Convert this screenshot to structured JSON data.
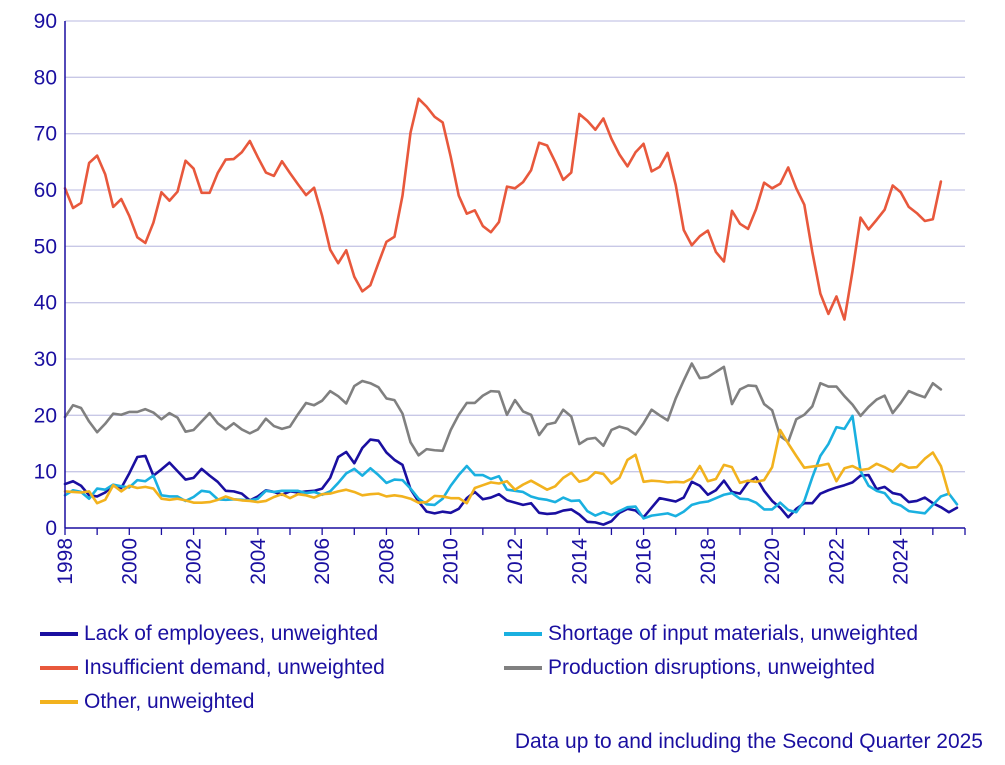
{
  "chart_data": {
    "type": "line",
    "title": "",
    "xlabel": "",
    "ylabel": "",
    "ylim": [
      0,
      90
    ],
    "xlim": [
      1998,
      2026
    ],
    "yticks": [
      0,
      10,
      20,
      30,
      40,
      50,
      60,
      70,
      80,
      90
    ],
    "xticks": [
      "1998",
      "2000",
      "2002",
      "2004",
      "2006",
      "2008",
      "2010",
      "2012",
      "2014",
      "2016",
      "2018",
      "2020",
      "2022",
      "2024"
    ],
    "grid": "horizontal",
    "legend_position": "bottom",
    "x_start": 1998,
    "x_step": 0.25,
    "note": "Data up to and including the Second Quarter 2025",
    "series": [
      {
        "name": "Lack of employees, unweighted",
        "color": "#1a0fa0",
        "values": [
          7.8,
          8.3,
          7.5,
          5.8,
          5.6,
          6.3,
          7.6,
          7.1,
          9.7,
          12.6,
          12.8,
          9.3,
          10.4,
          11.6,
          10.1,
          8.6,
          8.9,
          10.5,
          9.3,
          8.2,
          6.6,
          6.5,
          6.1,
          4.9,
          5.6,
          6.7,
          6.4,
          5.9,
          6.5,
          6.3,
          6.5,
          6.6,
          7.0,
          8.9,
          12.6,
          13.5,
          11.5,
          14.2,
          15.7,
          15.5,
          13.4,
          12.1,
          11.2,
          6.9,
          4.7,
          2.9,
          2.6,
          2.9,
          2.7,
          3.4,
          5.3,
          6.4,
          5.1,
          5.4,
          6.0,
          4.9,
          4.5,
          4.1,
          4.4,
          2.7,
          2.5,
          2.6,
          3.1,
          3.3,
          2.4,
          1.1,
          1.0,
          0.6,
          1.2,
          2.7,
          3.4,
          3.1,
          1.9,
          3.6,
          5.3,
          5.0,
          4.7,
          5.4,
          8.2,
          7.5,
          5.9,
          6.7,
          8.4,
          6.4,
          6.1,
          8.1,
          9.0,
          6.6,
          4.8,
          3.6,
          1.9,
          3.4,
          4.4,
          4.4,
          6.1,
          6.7,
          7.2,
          7.6,
          8.1,
          9.3,
          9.4,
          6.9,
          7.3,
          6.2,
          5.9,
          4.6,
          4.8,
          5.4,
          4.4,
          3.7,
          2.8,
          3.6
        ]
      },
      {
        "name": "Shortage of input materials, unweighted",
        "color": "#1ab0e0",
        "values": [
          5.8,
          6.7,
          6.4,
          5.2,
          7.0,
          6.8,
          7.7,
          7.4,
          7.2,
          8.5,
          8.3,
          9.3,
          5.8,
          5.6,
          5.6,
          4.8,
          5.5,
          6.6,
          6.4,
          5.1,
          5.0,
          5.1,
          5.0,
          4.9,
          5.2,
          6.6,
          6.4,
          6.6,
          6.6,
          6.6,
          6.2,
          6.4,
          5.9,
          6.5,
          8.0,
          9.7,
          10.5,
          9.3,
          10.6,
          9.4,
          8.0,
          8.6,
          8.5,
          7.0,
          5.2,
          4.2,
          4.1,
          5.2,
          7.5,
          9.4,
          11.0,
          9.4,
          9.4,
          8.7,
          9.2,
          6.8,
          6.6,
          6.4,
          5.6,
          5.2,
          5.0,
          4.6,
          5.4,
          4.8,
          4.9,
          3.0,
          2.2,
          2.8,
          2.3,
          3.0,
          3.7,
          3.8,
          1.7,
          2.2,
          2.4,
          2.6,
          2.1,
          2.9,
          4.1,
          4.5,
          4.7,
          5.3,
          5.9,
          6.2,
          5.2,
          5.1,
          4.5,
          3.3,
          3.3,
          4.5,
          3.2,
          2.8,
          4.8,
          9.0,
          12.8,
          14.9,
          17.9,
          17.6,
          19.9,
          10.1,
          7.5,
          6.6,
          6.2,
          4.5,
          4.0,
          3.0,
          2.8,
          2.6,
          4.1,
          5.6,
          6.1,
          4.2
        ]
      },
      {
        "name": "Insufficient demand, unweighted",
        "color": "#e8583c",
        "values": [
          60.3,
          56.8,
          57.7,
          64.8,
          66.1,
          62.8,
          57.0,
          58.4,
          55.4,
          51.6,
          50.6,
          54.2,
          59.6,
          58.1,
          59.7,
          65.2,
          63.8,
          59.5,
          59.5,
          63.0,
          65.4,
          65.5,
          66.7,
          68.7,
          65.8,
          63.1,
          62.5,
          65.1,
          63.0,
          61.0,
          59.1,
          60.4,
          55.4,
          49.4,
          47.0,
          49.3,
          44.6,
          42.0,
          43.1,
          47.0,
          50.8,
          51.7,
          59.0,
          70.2,
          76.2,
          74.8,
          73.0,
          72.0,
          65.9,
          59.0,
          55.8,
          56.4,
          53.6,
          52.5,
          54.3,
          60.6,
          60.3,
          61.4,
          63.5,
          68.4,
          67.9,
          65.0,
          61.8,
          63.1,
          73.5,
          72.3,
          70.7,
          72.7,
          69.1,
          66.3,
          64.2,
          66.7,
          68.2,
          63.3,
          64.1,
          66.6,
          60.9,
          52.9,
          50.2,
          51.8,
          52.8,
          49.0,
          47.3,
          56.3,
          54.0,
          53.1,
          56.6,
          61.3,
          60.3,
          61.1,
          64.0,
          60.3,
          57.4,
          49.0,
          41.6,
          38.0,
          41.1,
          37.0,
          45.6,
          55.1,
          53.0,
          54.7,
          56.5,
          60.8,
          59.6,
          57.0,
          55.9,
          54.5,
          54.8,
          61.5
        ]
      },
      {
        "name": "Production disruptions, unweighted",
        "color": "#808080",
        "values": [
          19.7,
          21.8,
          21.3,
          18.9,
          17.0,
          18.5,
          20.3,
          20.1,
          20.6,
          20.6,
          21.1,
          20.5,
          19.3,
          20.4,
          19.6,
          17.1,
          17.4,
          18.9,
          20.4,
          18.6,
          17.5,
          18.6,
          17.5,
          16.8,
          17.5,
          19.4,
          18.1,
          17.6,
          18.0,
          20.2,
          22.2,
          21.8,
          22.6,
          24.3,
          23.4,
          22.1,
          25.2,
          26.1,
          25.7,
          25.0,
          23.0,
          22.7,
          20.3,
          15.2,
          12.9,
          14.0,
          13.8,
          13.7,
          17.4,
          20.1,
          22.2,
          22.2,
          23.5,
          24.3,
          24.2,
          20.1,
          22.7,
          20.7,
          20.1,
          16.5,
          18.4,
          18.7,
          21.0,
          19.8,
          14.9,
          15.8,
          16.0,
          14.6,
          17.4,
          18.0,
          17.6,
          16.6,
          18.6,
          21.0,
          20.0,
          19.1,
          23.0,
          26.2,
          29.2,
          26.6,
          26.8,
          27.7,
          28.6,
          22.0,
          24.6,
          25.3,
          25.2,
          22.0,
          20.9,
          16.3,
          15.3,
          19.3,
          20.1,
          21.6,
          25.7,
          25.1,
          25.1,
          23.4,
          21.9,
          19.9,
          21.5,
          22.8,
          23.5,
          20.4,
          22.2,
          24.3,
          23.7,
          23.2,
          25.7,
          24.6
        ]
      },
      {
        "name": "Other, unweighted",
        "color": "#f2b21e",
        "values": [
          6.5,
          6.4,
          6.3,
          6.5,
          4.4,
          5.0,
          7.6,
          6.5,
          7.5,
          7.1,
          7.3,
          7.0,
          5.2,
          5.0,
          5.2,
          4.9,
          4.5,
          4.5,
          4.6,
          5.0,
          5.6,
          5.1,
          4.9,
          4.8,
          4.6,
          4.8,
          5.5,
          6.0,
          5.3,
          6.0,
          5.8,
          5.4,
          6.0,
          6.1,
          6.5,
          6.8,
          6.4,
          5.8,
          6.0,
          6.1,
          5.6,
          5.8,
          5.6,
          5.2,
          4.5,
          4.6,
          5.7,
          5.6,
          5.3,
          5.3,
          4.4,
          7.1,
          7.6,
          8.1,
          7.9,
          8.3,
          6.8,
          7.7,
          8.4,
          7.6,
          6.8,
          7.4,
          8.9,
          9.8,
          8.2,
          8.6,
          9.9,
          9.6,
          7.9,
          8.9,
          12.1,
          13.0,
          8.2,
          8.4,
          8.3,
          8.1,
          8.2,
          8.1,
          8.8,
          11.0,
          8.3,
          8.7,
          11.2,
          10.8,
          8.0,
          8.4,
          8.2,
          8.5,
          10.8,
          17.4,
          15.0,
          12.8,
          10.7,
          10.9,
          11.1,
          11.4,
          8.3,
          10.6,
          11.0,
          10.3,
          10.5,
          11.4,
          10.8,
          10.0,
          11.4,
          10.7,
          10.8,
          12.3,
          13.4,
          11.0,
          6.0
        ]
      }
    ]
  }
}
